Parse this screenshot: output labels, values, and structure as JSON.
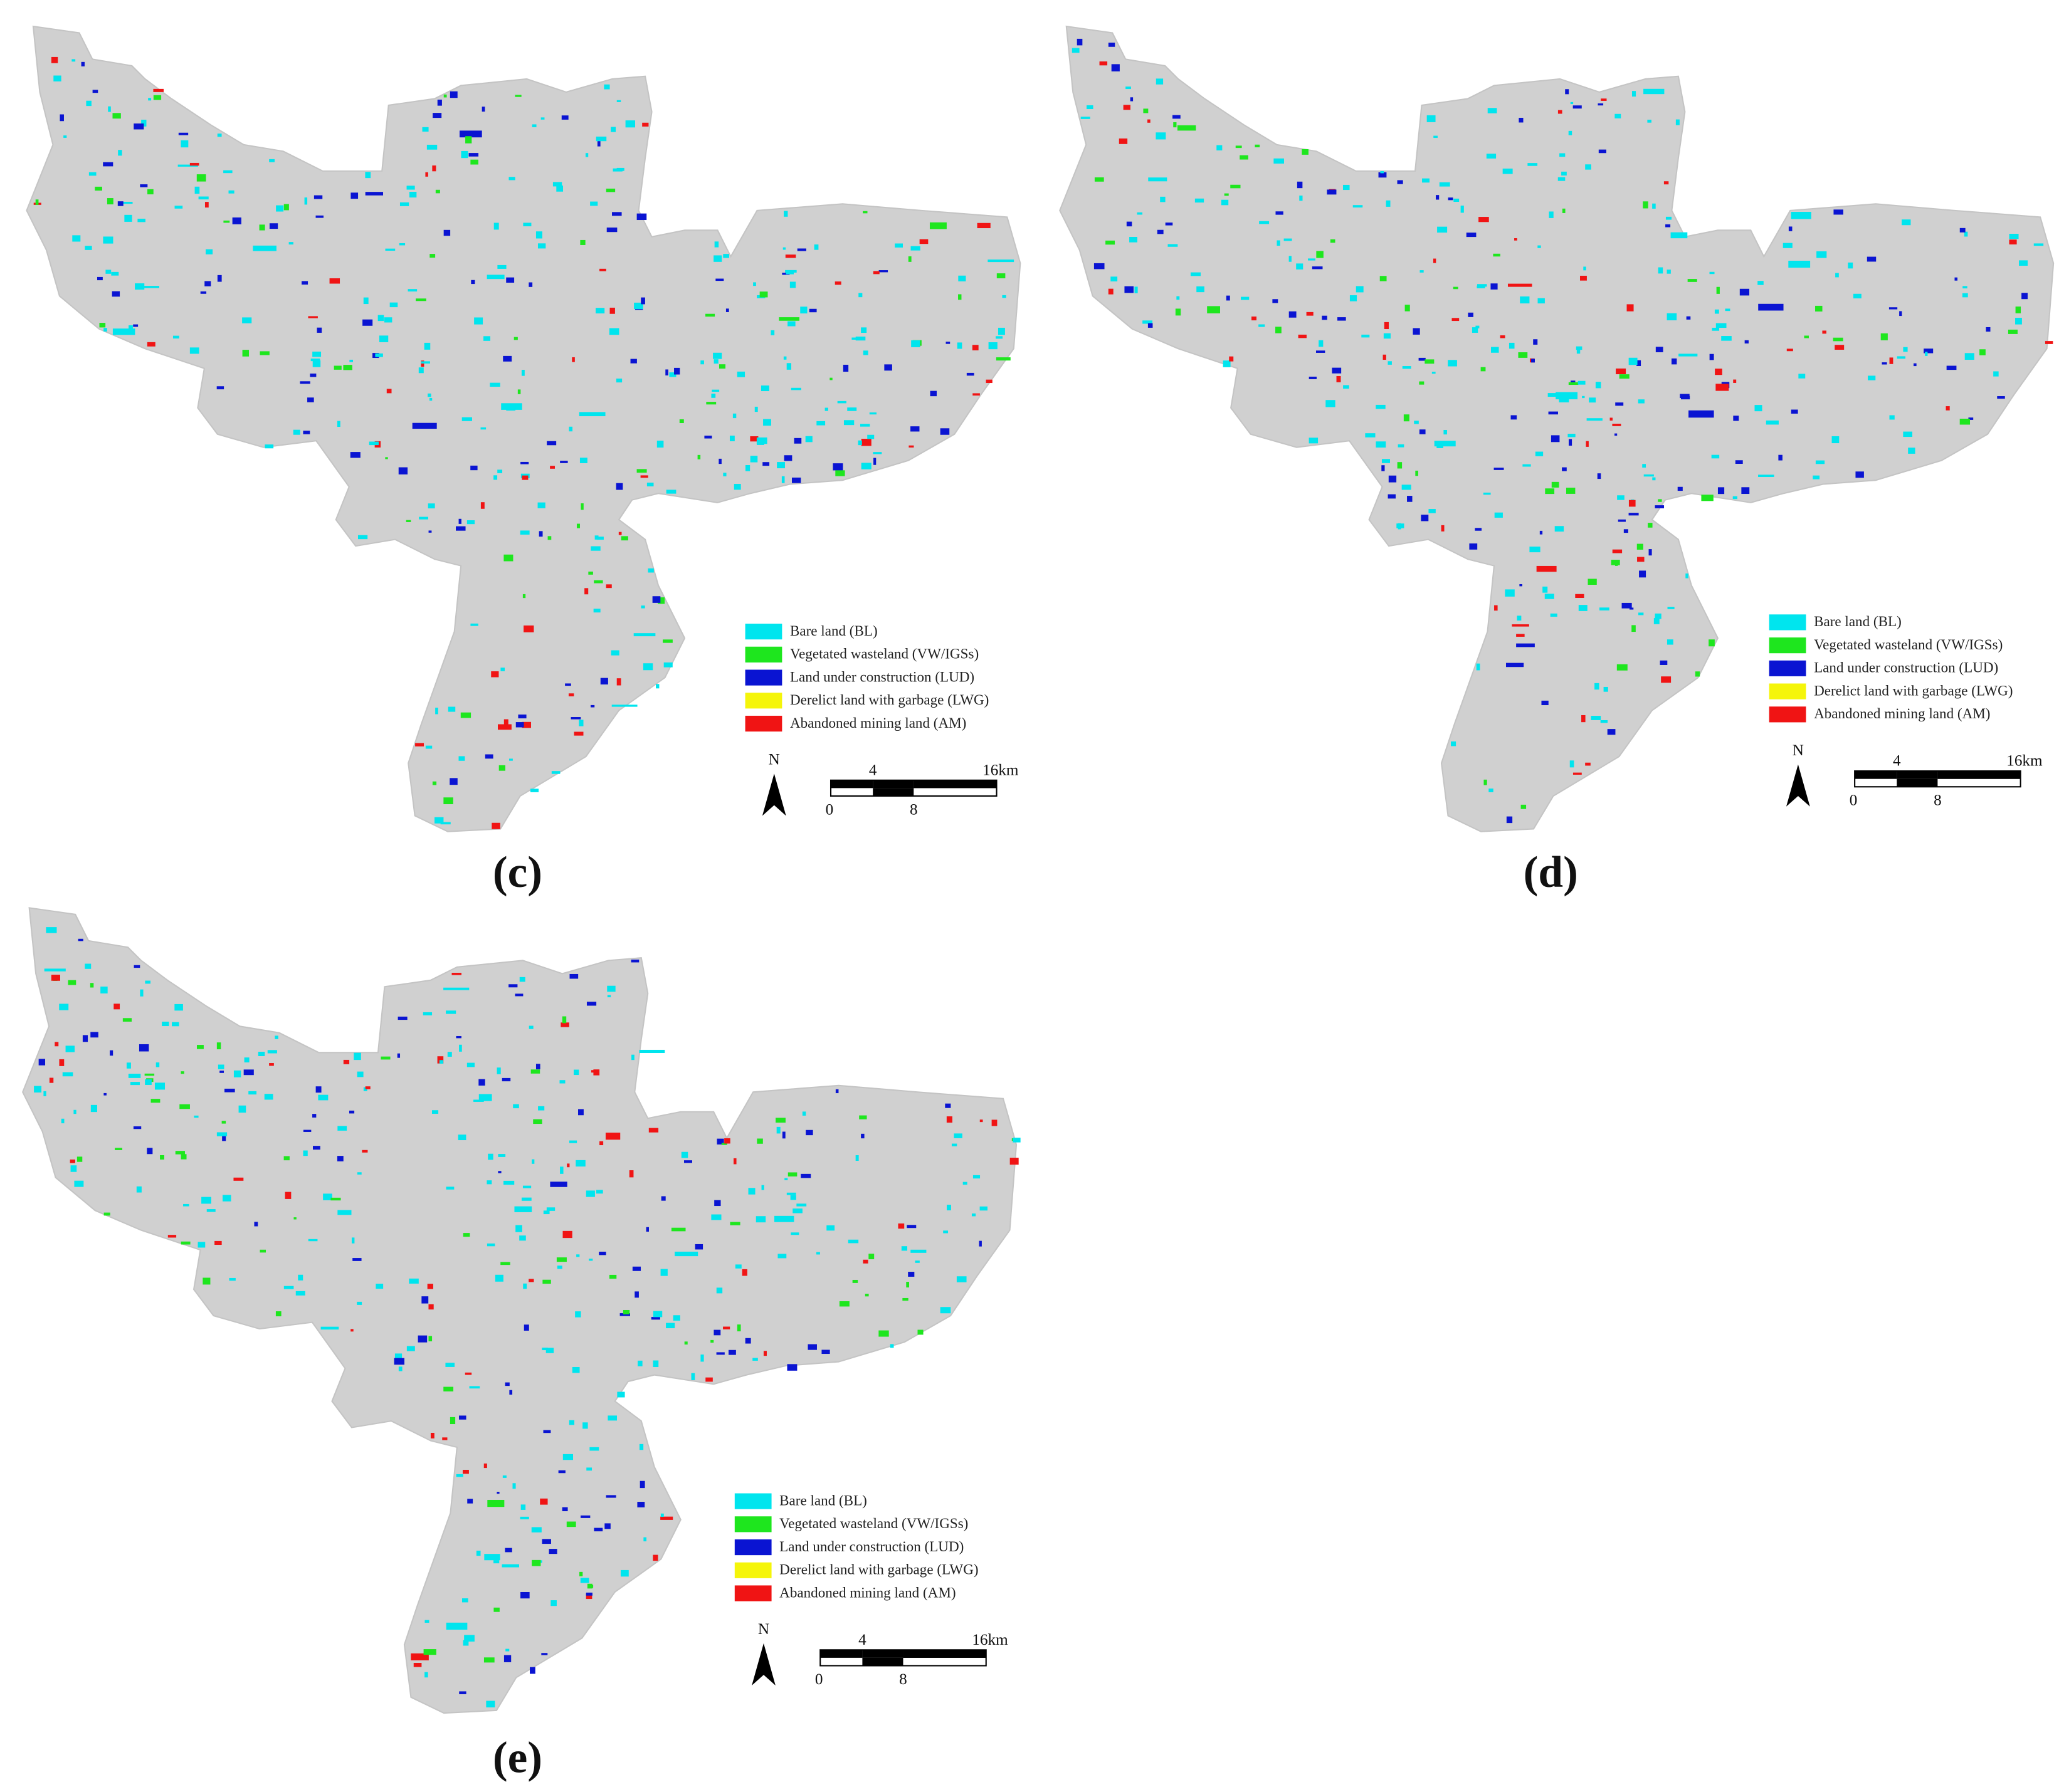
{
  "panels": [
    {
      "label": "(c)",
      "north": "N",
      "legend": [
        {
          "text": "Bare land (BL)",
          "color": "#00e5ee"
        },
        {
          "text": "Vegetated wasteland (VW/IGSs)",
          "color": "#1ee61e"
        },
        {
          "text": "Land under construction (LUD)",
          "color": "#0a14d2"
        },
        {
          "text": "Derelict land with garbage (LWG)",
          "color": "#f5f50a"
        },
        {
          "text": "Abandoned mining land (AM)",
          "color": "#f01414"
        }
      ],
      "scale_top": [
        "4",
        "16km"
      ],
      "scale_bottom": [
        "0",
        "8"
      ]
    },
    {
      "label": "(d)",
      "north": "N",
      "legend": [
        {
          "text": "Bare land (BL)",
          "color": "#00e5ee"
        },
        {
          "text": "Vegetated wasteland (VW/IGSs)",
          "color": "#1ee61e"
        },
        {
          "text": "Land under construction (LUD)",
          "color": "#0a14d2"
        },
        {
          "text": "Derelict land with garbage (LWG)",
          "color": "#f5f50a"
        },
        {
          "text": "Abandoned mining land (AM)",
          "color": "#f01414"
        }
      ],
      "scale_top": [
        "4",
        "16km"
      ],
      "scale_bottom": [
        "0",
        "8"
      ]
    },
    {
      "label": "(e)",
      "north": "N",
      "legend": [
        {
          "text": "Bare land (BL)",
          "color": "#00e5ee"
        },
        {
          "text": "Vegetated wasteland (VW/IGSs)",
          "color": "#1ee61e"
        },
        {
          "text": "Land under construction (LUD)",
          "color": "#0a14d2"
        },
        {
          "text": "Derelict land with garbage (LWG)",
          "color": "#f5f50a"
        },
        {
          "text": "Abandoned mining land (AM)",
          "color": "#f01414"
        }
      ],
      "scale_top": [
        "4",
        "16km"
      ],
      "scale_bottom": [
        "0",
        "8"
      ]
    }
  ]
}
